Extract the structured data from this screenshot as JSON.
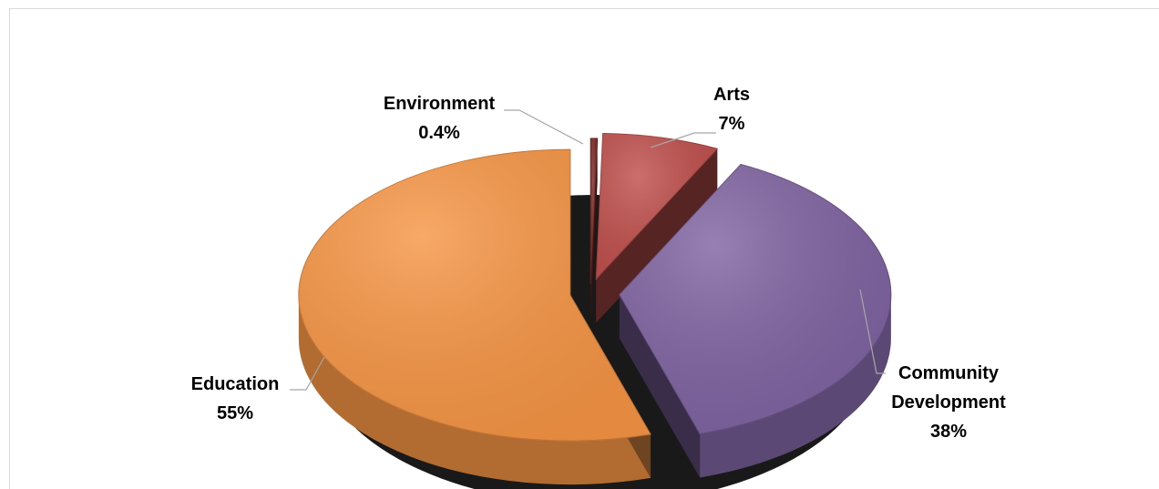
{
  "chart_data": {
    "type": "pie",
    "title": "",
    "style": "3d-exploded",
    "slices": [
      {
        "name": "Environment",
        "label": "0.4%",
        "value": 0.4,
        "color": "#7a2a25"
      },
      {
        "name": "Arts",
        "label": "7%",
        "value": 7,
        "color": "#c0504d"
      },
      {
        "name": "Community Development",
        "label": "38%",
        "value": 38,
        "color": "#8064a2"
      },
      {
        "name": "Education",
        "label": "55%",
        "value": 55,
        "color": "#f79646"
      }
    ]
  }
}
